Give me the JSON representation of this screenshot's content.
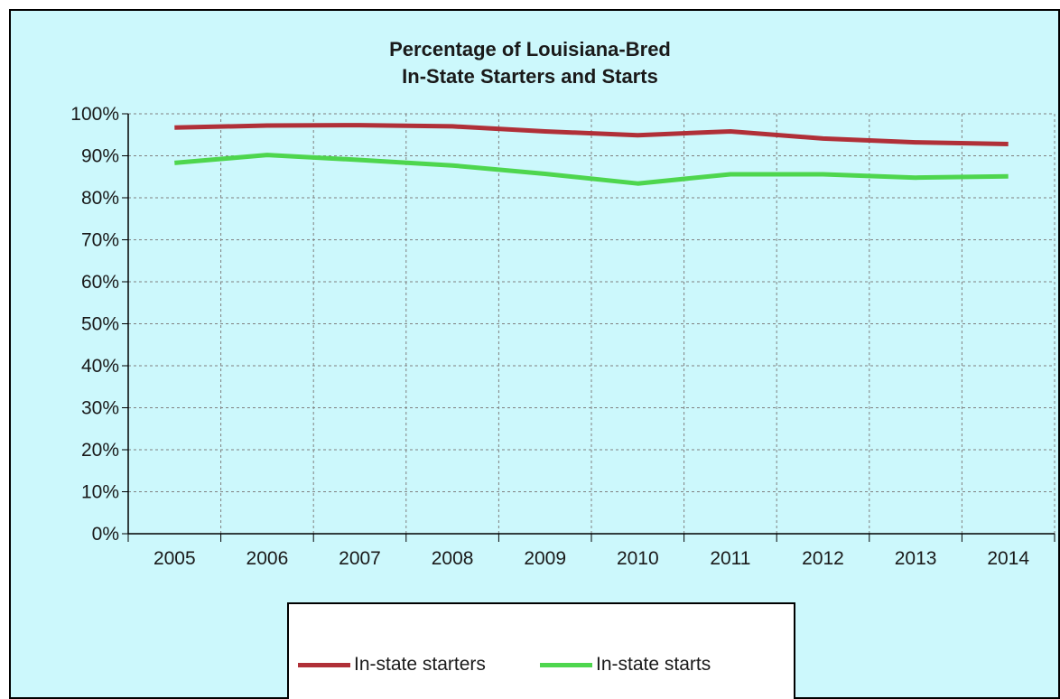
{
  "chart_data": {
    "type": "line",
    "title": "Percentage of Louisiana-Bred In-State Starters and Starts",
    "title_lines": [
      "Percentage of Louisiana-Bred",
      "In-State Starters and Starts"
    ],
    "categories": [
      "2005",
      "2006",
      "2007",
      "2008",
      "2009",
      "2010",
      "2011",
      "2012",
      "2013",
      "2014"
    ],
    "y_tick_labels": [
      "0%",
      "10%",
      "20%",
      "30%",
      "40%",
      "50%",
      "60%",
      "70%",
      "80%",
      "90%",
      "100%"
    ],
    "ylim": [
      0,
      100
    ],
    "y_unit": "%",
    "grid": true,
    "legend_position": "bottom",
    "series": [
      {
        "name": "In-state starters",
        "color": "#b03038",
        "values": [
          96.7,
          97.2,
          97.3,
          97.0,
          95.8,
          94.9,
          95.8,
          94.1,
          93.2,
          92.8
        ]
      },
      {
        "name": "In-state starts",
        "color": "#4ed64e",
        "values": [
          88.3,
          90.2,
          89.0,
          87.7,
          85.7,
          83.4,
          85.6,
          85.6,
          84.8,
          85.1
        ]
      }
    ]
  },
  "colors": {
    "background": "#ccf8fc",
    "grid": "#808080",
    "axis": "#000000"
  }
}
